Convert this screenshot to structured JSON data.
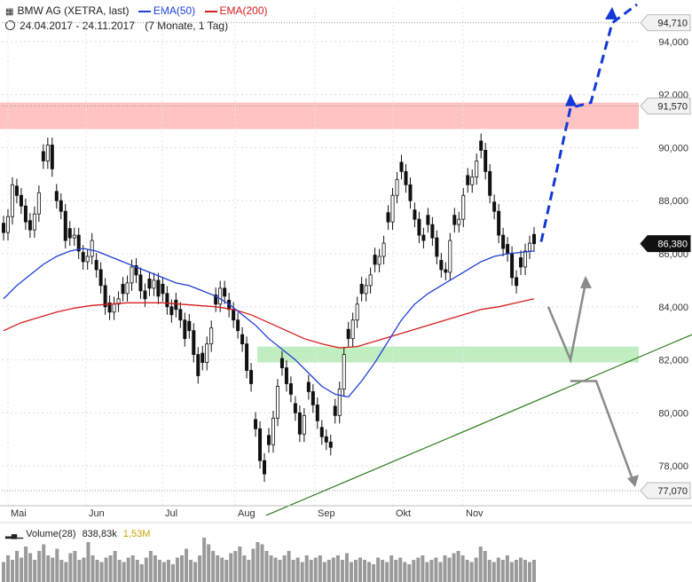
{
  "header": {
    "symbol": "BMW AG (XETRA, last)",
    "ema50_label": "EMA(50)",
    "ema200_label": "EMA(200)",
    "date_range": "24.04.2017 - 24.11.2017",
    "period": "(7 Monate, 1 Tag)"
  },
  "volume": {
    "label": "Volume(28)",
    "current": "838,83k",
    "average": "1,53M"
  },
  "colors": {
    "ema50": "#1f3fd6",
    "ema200": "#d81c1c",
    "resistance_zone": "#ffbcbc",
    "support_zone": "#b9ecb9",
    "trendline": "#2e7d1e",
    "projection_up": "#1238d8",
    "projection_alt": "#8a8a8a"
  },
  "chart_data": {
    "type": "candlestick",
    "title": "",
    "ylim": [
      76500,
      95300
    ],
    "y_ticks": [
      "78,000",
      "80,000",
      "82,000",
      "84,000",
      "86,000",
      "88,000",
      "90,000",
      "92,000",
      "94,000"
    ],
    "x_labels": [
      "Mai",
      "Jun",
      "Jul",
      "Aug",
      "Sep",
      "Okt",
      "Nov"
    ],
    "price_labels": {
      "high": "94,710",
      "resistance": "91,570",
      "last": "86,380",
      "low": "77,070"
    },
    "levels": {
      "high": 94710,
      "resistance": 91570,
      "last": 86380,
      "low": 77070
    },
    "resistance_zone": [
      90700,
      91700
    ],
    "support_zone": [
      81900,
      82500
    ],
    "closes": [
      86800,
      87400,
      88600,
      88200,
      87800,
      87200,
      86900,
      87500,
      88300,
      89500,
      90100,
      89200,
      88000,
      87600,
      86500,
      86600,
      86700,
      86100,
      85700,
      85900,
      86500,
      85400,
      84800,
      84000,
      83800,
      84100,
      84300,
      84500,
      84900,
      85500,
      85200,
      84600,
      84300,
      84700,
      85000,
      84400,
      84500,
      84000,
      83700,
      83900,
      83500,
      82800,
      83100,
      82200,
      81400,
      81900,
      82600,
      83200,
      84100,
      84700,
      84400,
      83900,
      83500,
      83100,
      82600,
      81600,
      81100,
      79400,
      78200,
      77700,
      78800,
      79800,
      81000,
      81700,
      81100,
      80700,
      80000,
      79200,
      79900,
      80800,
      80300,
      79700,
      79100,
      78900,
      78700,
      79900,
      80900,
      82200,
      82800,
      83500,
      84100,
      84500,
      84800,
      85200,
      85600,
      85900,
      86400,
      87200,
      88200,
      88800,
      89100,
      88600,
      88000,
      87300,
      86700,
      86500,
      87100,
      86600,
      85900,
      85400,
      85300,
      86500,
      87100,
      87300,
      88200,
      88600,
      88900,
      89500,
      89900,
      89100,
      88200,
      87600,
      86700,
      86200,
      86000,
      85100,
      84800,
      85500,
      86100,
      86400,
      86380
    ],
    "ema50": [
      84300,
      84800,
      85200,
      85600,
      85900,
      86100,
      86200,
      86100,
      85900,
      85700,
      85500,
      85300,
      85100,
      84900,
      84800,
      84600,
      84400,
      84100,
      83700,
      83300,
      82800,
      82400,
      82000,
      81500,
      81000,
      80700,
      80600,
      81200,
      81900,
      82700,
      83500,
      84100,
      84500,
      84800,
      85100,
      85400,
      85700,
      85900,
      86000,
      86050,
      86100
    ],
    "ema200": [
      83100,
      83400,
      83600,
      83800,
      83950,
      84050,
      84100,
      84150,
      84150,
      84150,
      84100,
      84050,
      84000,
      83900,
      83700,
      83400,
      83100,
      82800,
      82600,
      82450,
      82500,
      82700,
      82900,
      83100,
      83300,
      83500,
      83700,
      83900,
      84000,
      84150,
      84300
    ],
    "trendline": [
      [
        0,
        76200
      ],
      [
        1,
        82950
      ]
    ],
    "projection_up": [
      86450,
      91500,
      91700,
      94700,
      95400
    ],
    "projection_alt_up": [
      84000,
      82000,
      84900
    ],
    "projection_alt_down": [
      81200,
      81200,
      77200
    ],
    "volume_bars": [
      0.45,
      0.6,
      0.5,
      0.7,
      0.55,
      0.8,
      0.65,
      0.5,
      0.7,
      0.85,
      0.6,
      0.55,
      0.75,
      0.5,
      0.45,
      0.65,
      0.7,
      0.5,
      0.55,
      0.9,
      0.6,
      0.5,
      0.45,
      0.55,
      0.6,
      0.7,
      0.5,
      0.45,
      0.55,
      0.6,
      0.5,
      0.4,
      0.55,
      0.7,
      0.6,
      0.5,
      0.45,
      0.5,
      0.4,
      0.55,
      0.6,
      0.75,
      0.5,
      0.45,
      0.6,
      1.0,
      0.85,
      0.7,
      0.6,
      0.55,
      0.5,
      0.65,
      0.7,
      0.8,
      0.6,
      0.5,
      0.75,
      0.9,
      0.85,
      0.7,
      0.6,
      0.55,
      0.5,
      0.6,
      0.7,
      0.5,
      0.55,
      0.45,
      0.6,
      0.5,
      0.55,
      0.6,
      0.45,
      0.5,
      0.55,
      0.6,
      0.5,
      0.65,
      0.45,
      0.5,
      0.55,
      0.5,
      0.45,
      0.4,
      0.55,
      0.5,
      0.45,
      0.6,
      0.5,
      0.55,
      0.45,
      0.4,
      0.5,
      0.55,
      0.6,
      0.45,
      0.5,
      0.55,
      0.45,
      0.6,
      0.55,
      0.65,
      0.7,
      0.6,
      0.5,
      0.45,
      0.55,
      0.8,
      0.7,
      0.5,
      0.45,
      0.55,
      0.5,
      0.6,
      0.45,
      0.5,
      0.55,
      0.5,
      0.45,
      0.5
    ]
  }
}
